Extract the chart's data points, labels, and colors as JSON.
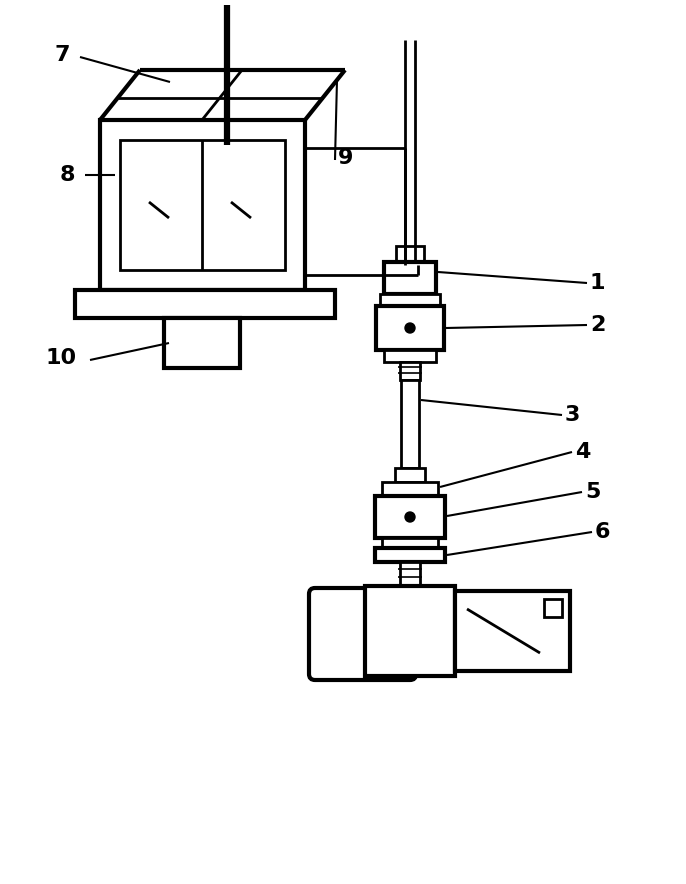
{
  "background_color": "#ffffff",
  "line_color": "#000000",
  "lw": 2.0,
  "lw_thick": 3.0,
  "label_fontsize": 16
}
